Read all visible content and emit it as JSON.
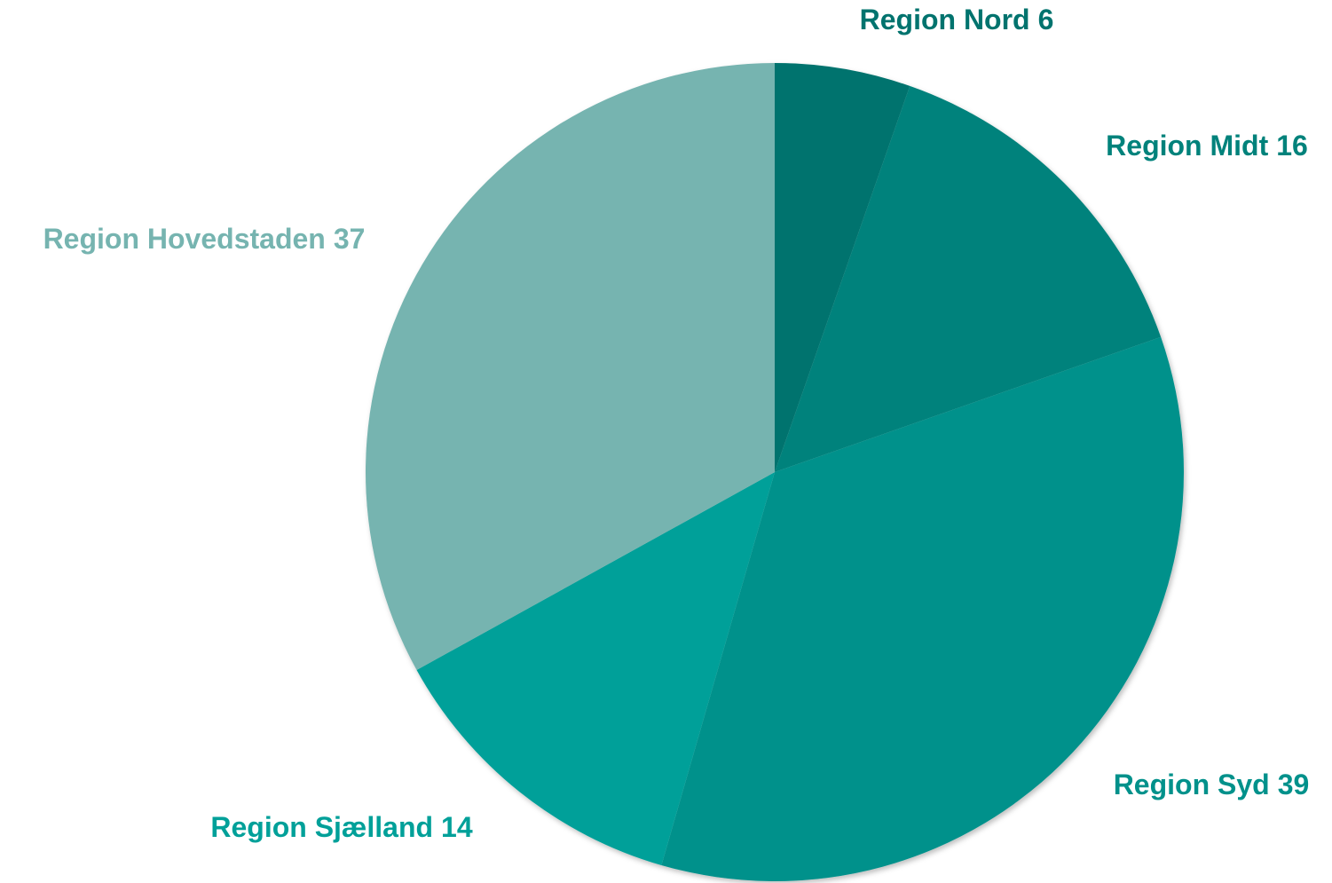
{
  "chart_data": {
    "type": "pie",
    "categories": [
      "Region Nord",
      "Region Midt",
      "Region Syd",
      "Region Sjælland",
      "Region Hovedstaden"
    ],
    "values": [
      6,
      16,
      39,
      14,
      37
    ],
    "colors": [
      "#00736e",
      "#00827b",
      "#00918b",
      "#00a099",
      "#76b4b0"
    ]
  }
}
